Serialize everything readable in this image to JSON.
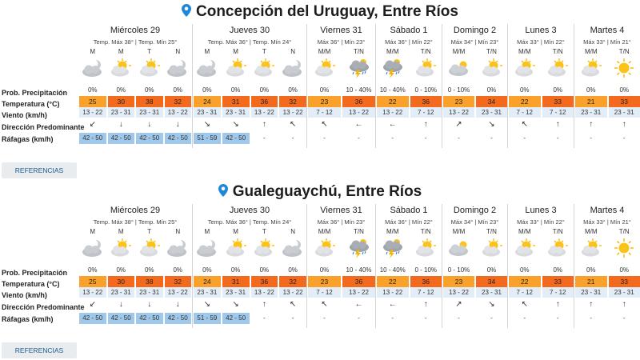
{
  "row_labels": {
    "prob": "Prob. Precipitación",
    "temp": "Temperatura (°C)",
    "wind": "Viento (km/h)",
    "dir": "Dirección Predominante",
    "gust": "Ráfagas (km/h)"
  },
  "references_label": "REFERENCIAS",
  "colors": {
    "warm": "#f9a12a",
    "hot": "#f36a1e",
    "gust_highlight": "#9fc8ea",
    "wind_bg": "#e3edf7"
  },
  "locations": [
    {
      "title": "Concepción del Uruguay, Entre Ríos",
      "days": [
        {
          "name": "Miércoles 29",
          "temps": "Temp. Máx 38° | Temp. Mín 25°",
          "slots": [
            {
              "label": "M",
              "icon": "moon-cloud-icon",
              "prob": "0%",
              "temp": "25",
              "tc": "warm",
              "wind": "13 - 22",
              "dir": "↙",
              "gust": "42 - 50",
              "hl": true
            },
            {
              "label": "M",
              "icon": "sun-cloud-icon",
              "prob": "0%",
              "temp": "30",
              "tc": "hot",
              "wind": "23 - 31",
              "dir": "↓",
              "gust": "42 - 50",
              "hl": true
            },
            {
              "label": "T",
              "icon": "sun-cloud-icon",
              "prob": "0%",
              "temp": "38",
              "tc": "hot",
              "wind": "23 - 31",
              "dir": "↓",
              "gust": "42 - 50",
              "hl": true
            },
            {
              "label": "N",
              "icon": "moon-cloud-icon",
              "prob": "0%",
              "temp": "32",
              "tc": "hot",
              "wind": "13 - 22",
              "dir": "↓",
              "gust": "42 - 50",
              "hl": true
            }
          ]
        },
        {
          "name": "Jueves 30",
          "temps": "Temp. Máx 36° | Temp. Mín 24°",
          "slots": [
            {
              "label": "M",
              "icon": "moon-cloud-icon",
              "prob": "0%",
              "temp": "24",
              "tc": "warm",
              "wind": "23 - 31",
              "dir": "↘",
              "gust": "51 - 59",
              "hl": true
            },
            {
              "label": "M",
              "icon": "sun-cloud-icon",
              "prob": "0%",
              "temp": "31",
              "tc": "hot",
              "wind": "23 - 31",
              "dir": "↘",
              "gust": "42 - 50",
              "hl": true
            },
            {
              "label": "T",
              "icon": "sun-cloud-icon",
              "prob": "0%",
              "temp": "36",
              "tc": "hot",
              "wind": "13 - 22",
              "dir": "↑",
              "gust": "-",
              "hl": false
            },
            {
              "label": "N",
              "icon": "moon-cloud-icon",
              "prob": "0%",
              "temp": "32",
              "tc": "hot",
              "wind": "13 - 22",
              "dir": "↖",
              "gust": "-",
              "hl": false
            }
          ]
        },
        {
          "name": "Viernes 31",
          "temps": "Máx 36° | Mín 23°",
          "slots": [
            {
              "label": "M/M",
              "icon": "sun-cloud-icon",
              "prob": "0%",
              "temp": "23",
              "tc": "warm",
              "wind": "7 - 12",
              "dir": "↖",
              "gust": "-",
              "hl": false
            },
            {
              "label": "T/N",
              "icon": "storm-icon",
              "prob": "10 - 40%",
              "temp": "36",
              "tc": "hot",
              "wind": "13 - 22",
              "dir": "←",
              "gust": "-",
              "hl": false
            }
          ]
        },
        {
          "name": "Sábado 1",
          "temps": "Máx 36° | Mín 22°",
          "slots": [
            {
              "label": "M/M",
              "icon": "storm-icon",
              "prob": "10 - 40%",
              "temp": "22",
              "tc": "warm",
              "wind": "13 - 22",
              "dir": "←",
              "gust": "-",
              "hl": false
            },
            {
              "label": "T/N",
              "icon": "sun-cloud-icon",
              "prob": "0 - 10%",
              "temp": "36",
              "tc": "hot",
              "wind": "7 - 12",
              "dir": "↑",
              "gust": "-",
              "hl": false
            }
          ]
        },
        {
          "name": "Domingo 2",
          "temps": "Máx 34° | Mín 23°",
          "slots": [
            {
              "label": "M/M",
              "icon": "cloud-icon",
              "prob": "0 - 10%",
              "temp": "23",
              "tc": "warm",
              "wind": "13 - 22",
              "dir": "↗",
              "gust": "-",
              "hl": false
            },
            {
              "label": "T/N",
              "icon": "sun-cloud-icon",
              "prob": "0%",
              "temp": "34",
              "tc": "hot",
              "wind": "23 - 31",
              "dir": "↘",
              "gust": "-",
              "hl": false
            }
          ]
        },
        {
          "name": "Lunes 3",
          "temps": "Máx 33° | Mín 22°",
          "slots": [
            {
              "label": "M/M",
              "icon": "sun-cloud-icon",
              "prob": "0%",
              "temp": "22",
              "tc": "warm",
              "wind": "7 - 12",
              "dir": "↖",
              "gust": "-",
              "hl": false
            },
            {
              "label": "T/N",
              "icon": "sun-cloud-icon",
              "prob": "0%",
              "temp": "33",
              "tc": "hot",
              "wind": "7 - 12",
              "dir": "↑",
              "gust": "-",
              "hl": false
            }
          ]
        },
        {
          "name": "Martes 4",
          "temps": "Máx 33° | Mín 21°",
          "slots": [
            {
              "label": "M/M",
              "icon": "sun-cloud-icon",
              "prob": "0%",
              "temp": "21",
              "tc": "warm",
              "wind": "23 - 31",
              "dir": "↑",
              "gust": "-",
              "hl": false
            },
            {
              "label": "T/N",
              "icon": "sun-icon",
              "prob": "0%",
              "temp": "33",
              "tc": "hot",
              "wind": "23 - 31",
              "dir": "↑",
              "gust": "-",
              "hl": false
            }
          ]
        }
      ]
    },
    {
      "title": "Gualeguaychú, Entre Ríos",
      "days": [
        {
          "name": "Miércoles 29",
          "temps": "Temp. Máx 38° | Temp. Mín 25°",
          "slots": [
            {
              "label": "M",
              "icon": "moon-cloud-icon",
              "prob": "0%",
              "temp": "25",
              "tc": "warm",
              "wind": "13 - 22",
              "dir": "↙",
              "gust": "42 - 50",
              "hl": true
            },
            {
              "label": "M",
              "icon": "sun-cloud-icon",
              "prob": "0%",
              "temp": "30",
              "tc": "hot",
              "wind": "23 - 31",
              "dir": "↓",
              "gust": "42 - 50",
              "hl": true
            },
            {
              "label": "T",
              "icon": "sun-cloud-icon",
              "prob": "0%",
              "temp": "38",
              "tc": "hot",
              "wind": "23 - 31",
              "dir": "↓",
              "gust": "42 - 50",
              "hl": true
            },
            {
              "label": "N",
              "icon": "moon-cloud-icon",
              "prob": "0%",
              "temp": "32",
              "tc": "hot",
              "wind": "13 - 22",
              "dir": "↓",
              "gust": "42 - 50",
              "hl": true
            }
          ]
        },
        {
          "name": "Jueves 30",
          "temps": "Temp. Máx 36° | Temp. Mín 24°",
          "slots": [
            {
              "label": "M",
              "icon": "moon-cloud-icon",
              "prob": "0%",
              "temp": "24",
              "tc": "warm",
              "wind": "23 - 31",
              "dir": "↘",
              "gust": "51 - 59",
              "hl": true
            },
            {
              "label": "M",
              "icon": "sun-cloud-icon",
              "prob": "0%",
              "temp": "31",
              "tc": "hot",
              "wind": "23 - 31",
              "dir": "↘",
              "gust": "42 - 50",
              "hl": true
            },
            {
              "label": "T",
              "icon": "sun-cloud-icon",
              "prob": "0%",
              "temp": "36",
              "tc": "hot",
              "wind": "13 - 22",
              "dir": "↑",
              "gust": "-",
              "hl": false
            },
            {
              "label": "N",
              "icon": "moon-cloud-icon",
              "prob": "0%",
              "temp": "32",
              "tc": "hot",
              "wind": "13 - 22",
              "dir": "↖",
              "gust": "-",
              "hl": false
            }
          ]
        },
        {
          "name": "Viernes 31",
          "temps": "Máx 36° | Mín 23°",
          "slots": [
            {
              "label": "M/M",
              "icon": "sun-cloud-icon",
              "prob": "0%",
              "temp": "23",
              "tc": "warm",
              "wind": "7 - 12",
              "dir": "↖",
              "gust": "-",
              "hl": false
            },
            {
              "label": "T/N",
              "icon": "storm-icon",
              "prob": "10 - 40%",
              "temp": "36",
              "tc": "hot",
              "wind": "13 - 22",
              "dir": "←",
              "gust": "-",
              "hl": false
            }
          ]
        },
        {
          "name": "Sábado 1",
          "temps": "Máx 36° | Mín 22°",
          "slots": [
            {
              "label": "M/M",
              "icon": "storm-icon",
              "prob": "10 - 40%",
              "temp": "22",
              "tc": "warm",
              "wind": "13 - 22",
              "dir": "←",
              "gust": "-",
              "hl": false
            },
            {
              "label": "T/N",
              "icon": "sun-cloud-icon",
              "prob": "0 - 10%",
              "temp": "36",
              "tc": "hot",
              "wind": "7 - 12",
              "dir": "↑",
              "gust": "-",
              "hl": false
            }
          ]
        },
        {
          "name": "Domingo 2",
          "temps": "Máx 34° | Mín 23°",
          "slots": [
            {
              "label": "M/M",
              "icon": "cloud-icon",
              "prob": "0 - 10%",
              "temp": "23",
              "tc": "warm",
              "wind": "13 - 22",
              "dir": "↗",
              "gust": "-",
              "hl": false
            },
            {
              "label": "T/N",
              "icon": "sun-cloud-icon",
              "prob": "0%",
              "temp": "34",
              "tc": "hot",
              "wind": "23 - 31",
              "dir": "↘",
              "gust": "-",
              "hl": false
            }
          ]
        },
        {
          "name": "Lunes 3",
          "temps": "Máx 33° | Mín 22°",
          "slots": [
            {
              "label": "M/M",
              "icon": "sun-cloud-icon",
              "prob": "0%",
              "temp": "22",
              "tc": "warm",
              "wind": "7 - 12",
              "dir": "↖",
              "gust": "-",
              "hl": false
            },
            {
              "label": "T/N",
              "icon": "sun-cloud-icon",
              "prob": "0%",
              "temp": "33",
              "tc": "hot",
              "wind": "7 - 12",
              "dir": "↑",
              "gust": "-",
              "hl": false
            }
          ]
        },
        {
          "name": "Martes 4",
          "temps": "Máx 33° | Mín 21°",
          "slots": [
            {
              "label": "M/M",
              "icon": "sun-cloud-icon",
              "prob": "0%",
              "temp": "21",
              "tc": "warm",
              "wind": "23 - 31",
              "dir": "↑",
              "gust": "-",
              "hl": false
            },
            {
              "label": "T/N",
              "icon": "sun-icon",
              "prob": "0%",
              "temp": "33",
              "tc": "hot",
              "wind": "23 - 31",
              "dir": "↑",
              "gust": "-",
              "hl": false
            }
          ]
        }
      ]
    }
  ]
}
